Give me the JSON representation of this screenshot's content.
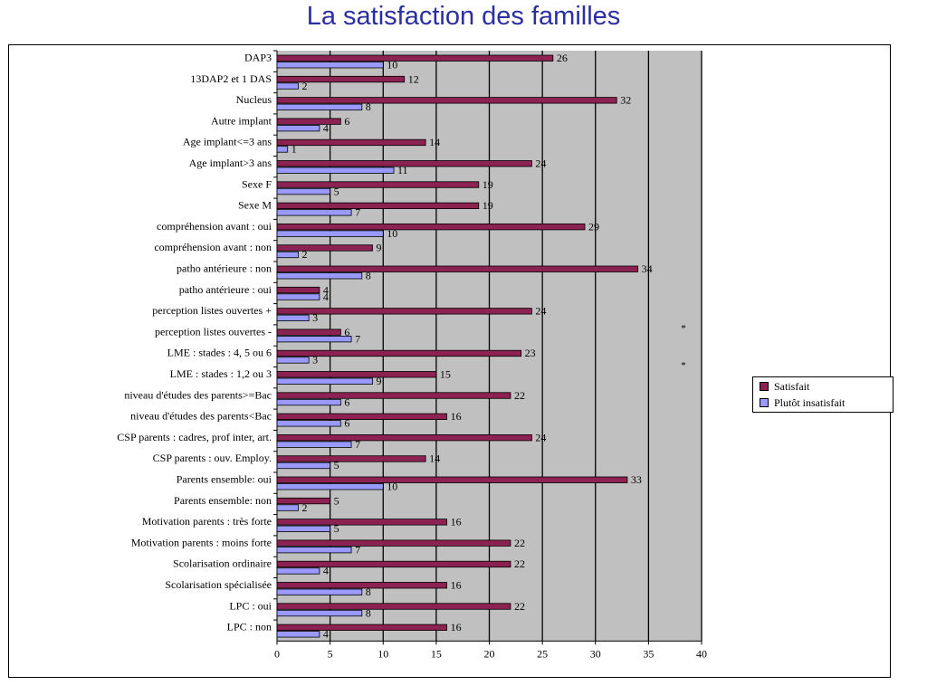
{
  "page": {
    "title": "La satisfaction des familles"
  },
  "colors": {
    "satisfait": "#8b2252",
    "insatisfait": "#9999ff",
    "plot_background": "#c0c0c0"
  },
  "chart_data": {
    "type": "bar",
    "orientation": "horizontal",
    "categories": [
      "DAP3",
      "13DAP2 et 1 DAS",
      "Nucleus",
      "Autre implant",
      "Age implant<=3 ans",
      "Age implant>3 ans",
      "Sexe F",
      "Sexe M",
      "compréhension avant : oui",
      "compréhension avant : non",
      "patho antérieure : non",
      "patho antérieure : oui",
      "perception listes ouvertes +",
      "perception listes ouvertes -",
      "LME : stades : 4, 5 ou 6",
      "LME : stades : 1,2 ou 3",
      "niveau d'études des parents>=Bac",
      "niveau d'études des parents<Bac",
      "CSP parents : cadres, prof inter, art.",
      "CSP parents : ouv. Employ.",
      "Parents ensemble: oui",
      "Parents ensemble: non",
      "Motivation parents : très forte",
      "Motivation parents : moins forte",
      "Scolarisation ordinaire",
      "Scolarisation spécialisée",
      "LPC : oui",
      "LPC : non"
    ],
    "series": [
      {
        "name": "Satisfait",
        "color": "#8b2252",
        "values": [
          26,
          12,
          32,
          6,
          14,
          24,
          19,
          19,
          29,
          9,
          34,
          4,
          24,
          6,
          23,
          15,
          22,
          16,
          24,
          14,
          33,
          5,
          16,
          22,
          22,
          16,
          22,
          16
        ]
      },
      {
        "name": "Plutôt insatisfait",
        "color": "#9999ff",
        "values": [
          10,
          2,
          8,
          4,
          1,
          11,
          5,
          7,
          10,
          2,
          8,
          4,
          3,
          7,
          3,
          9,
          6,
          6,
          7,
          5,
          10,
          2,
          5,
          7,
          4,
          8,
          8,
          4
        ]
      }
    ],
    "xlim": [
      0,
      40
    ],
    "xticks": [
      0,
      5,
      10,
      15,
      20,
      25,
      30,
      35,
      40
    ],
    "grid": true,
    "annotations": [
      "*",
      "*"
    ],
    "legend": {
      "position": "right",
      "labels": [
        "Satisfait",
        "Plutôt insatisfait"
      ]
    }
  }
}
